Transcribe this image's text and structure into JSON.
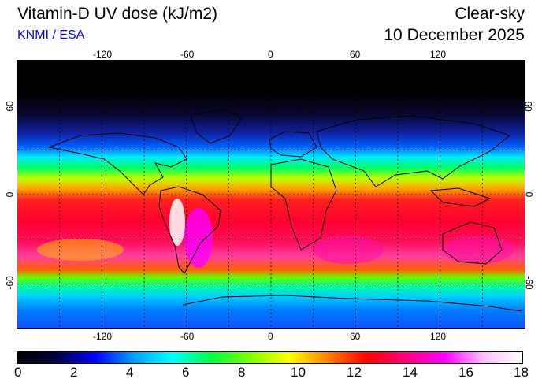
{
  "header": {
    "title": "Vitamin-D UV dose (kJ/m2)",
    "credit": "KNMI / ESA",
    "sky_condition": "Clear-sky",
    "date": "10 December 2025"
  },
  "map": {
    "longitude_labels": [
      "-120",
      "-60",
      "0",
      "60",
      "120"
    ],
    "latitude_labels": [
      "60",
      "0",
      "-60"
    ],
    "lon_range": [
      -180,
      180
    ],
    "lat_range": [
      -90,
      90
    ],
    "gridlines": "dotted every 30 degrees",
    "projection": "equirectangular"
  },
  "colorbar": {
    "ticks": [
      "0",
      "2",
      "4",
      "6",
      "8",
      "10",
      "12",
      "14",
      "16",
      "18"
    ],
    "min": 0,
    "max": 18,
    "colors": [
      "#000000",
      "#000040",
      "#0000ff",
      "#00a0ff",
      "#00ffff",
      "#00ff40",
      "#80ff00",
      "#ffff00",
      "#ff8000",
      "#ff0000",
      "#ff0080",
      "#ff00ff",
      "#ffc0ff",
      "#ffffff"
    ]
  }
}
